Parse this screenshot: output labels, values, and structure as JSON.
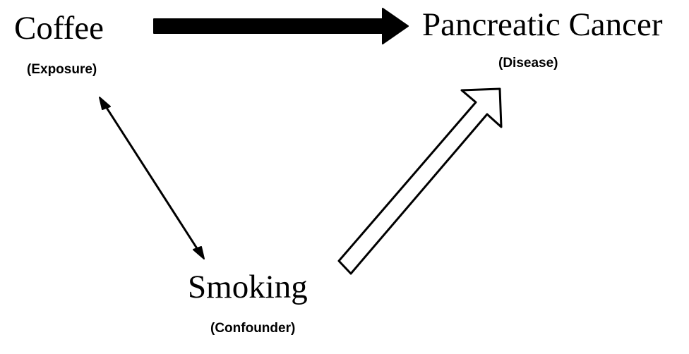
{
  "diagram": {
    "nodes": {
      "exposure": {
        "title": "Coffee",
        "role": "(Exposure)"
      },
      "disease": {
        "title": "Pancreatic Cancer",
        "role": "(Disease)"
      },
      "confounder": {
        "title": "Smoking",
        "role": "(Confounder)"
      }
    },
    "edges": [
      {
        "from": "Coffee",
        "to": "Pancreatic Cancer",
        "style": "solid-black-thick"
      },
      {
        "from": "Coffee",
        "to": "Smoking",
        "style": "thin-double-headed"
      },
      {
        "from": "Smoking",
        "to": "Pancreatic Cancer",
        "style": "outlined-hollow"
      }
    ],
    "colors": {
      "arrow": "#000000",
      "background": "#ffffff"
    }
  }
}
